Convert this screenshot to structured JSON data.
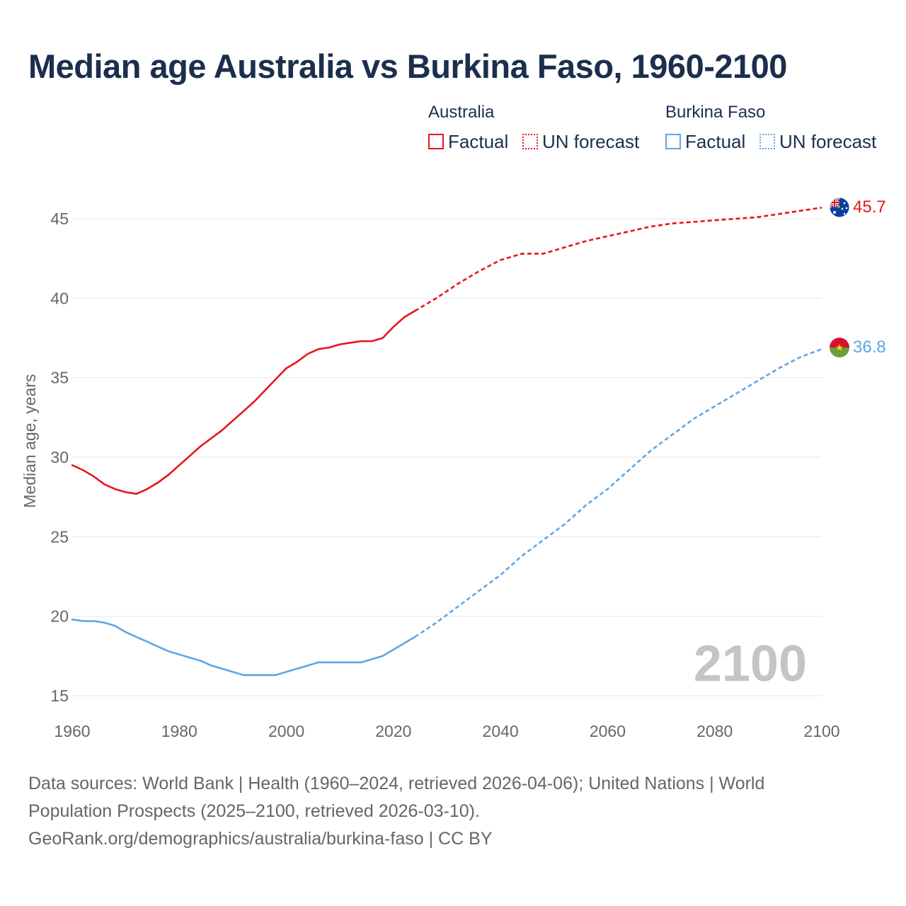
{
  "title": "Median age Australia vs Burkina Faso, 1960-2100",
  "legend": {
    "groups": [
      {
        "country": "Australia",
        "factual": "Factual",
        "forecast": "UN forecast",
        "color": "#e8141c"
      },
      {
        "country": "Burkina Faso",
        "factual": "Factual",
        "forecast": "UN forecast",
        "color": "#5ea6e6"
      }
    ]
  },
  "chart_data": {
    "type": "line",
    "title": "Median age Australia vs Burkina Faso, 1960-2100",
    "xlabel": "",
    "ylabel": "Median age, years",
    "xlim": [
      1960,
      2100
    ],
    "ylim": [
      15,
      47.5
    ],
    "x_ticks": [
      "1960",
      "1980",
      "2000",
      "2020",
      "2040",
      "2060",
      "2080",
      "2100"
    ],
    "y_ticks": [
      "15",
      "20",
      "25",
      "30",
      "35",
      "40",
      "45"
    ],
    "year_watermark": "2100",
    "series": [
      {
        "name": "Australia",
        "color": "#e8141c",
        "end_label": "45.7",
        "factual_years": [
          1960,
          1962,
          1964,
          1966,
          1968,
          1970,
          1972,
          1974,
          1976,
          1978,
          1980,
          1982,
          1984,
          1986,
          1988,
          1990,
          1992,
          1994,
          1996,
          1998,
          2000,
          2002,
          2004,
          2006,
          2008,
          2010,
          2012,
          2014,
          2016,
          2018,
          2020,
          2022,
          2024
        ],
        "factual_values": [
          29.5,
          29.2,
          28.8,
          28.3,
          28.0,
          27.8,
          27.7,
          28.0,
          28.4,
          28.9,
          29.5,
          30.1,
          30.7,
          31.2,
          31.7,
          32.3,
          32.9,
          33.5,
          34.2,
          34.9,
          35.6,
          36.0,
          36.5,
          36.8,
          36.9,
          37.1,
          37.2,
          37.3,
          37.3,
          37.5,
          38.2,
          38.8,
          39.2
        ],
        "forecast_years": [
          2024,
          2028,
          2032,
          2036,
          2040,
          2044,
          2048,
          2052,
          2056,
          2060,
          2064,
          2068,
          2072,
          2076,
          2080,
          2084,
          2088,
          2092,
          2096,
          2100
        ],
        "forecast_values": [
          39.2,
          40.0,
          40.9,
          41.7,
          42.4,
          42.8,
          42.8,
          43.2,
          43.6,
          43.9,
          44.2,
          44.5,
          44.7,
          44.8,
          44.9,
          45.0,
          45.1,
          45.3,
          45.5,
          45.7
        ]
      },
      {
        "name": "Burkina Faso",
        "color": "#5ea6e6",
        "end_label": "36.8",
        "factual_years": [
          1960,
          1962,
          1964,
          1966,
          1968,
          1970,
          1972,
          1974,
          1976,
          1978,
          1980,
          1982,
          1984,
          1986,
          1988,
          1990,
          1992,
          1994,
          1996,
          1998,
          2000,
          2002,
          2004,
          2006,
          2008,
          2010,
          2012,
          2014,
          2016,
          2018,
          2020,
          2022,
          2024
        ],
        "factual_values": [
          19.8,
          19.7,
          19.7,
          19.6,
          19.4,
          19.0,
          18.7,
          18.4,
          18.1,
          17.8,
          17.6,
          17.4,
          17.2,
          16.9,
          16.7,
          16.5,
          16.3,
          16.3,
          16.3,
          16.3,
          16.5,
          16.7,
          16.9,
          17.1,
          17.1,
          17.1,
          17.1,
          17.1,
          17.3,
          17.5,
          17.9,
          18.3,
          18.7
        ],
        "forecast_years": [
          2024,
          2028,
          2032,
          2036,
          2040,
          2044,
          2048,
          2052,
          2056,
          2060,
          2064,
          2068,
          2072,
          2076,
          2080,
          2084,
          2088,
          2092,
          2096,
          2100
        ],
        "forecast_values": [
          18.7,
          19.6,
          20.6,
          21.6,
          22.6,
          23.8,
          24.8,
          25.8,
          27.0,
          28.0,
          29.2,
          30.4,
          31.4,
          32.4,
          33.2,
          34.0,
          34.8,
          35.6,
          36.3,
          36.8
        ]
      }
    ]
  },
  "footer": {
    "line1": "Data sources: World Bank | Health (1960–2024, retrieved 2026-04-06); United Nations | World",
    "line2": "Population Prospects (2025–2100, retrieved 2026-03-10).",
    "line3": "GeoRank.org/demographics/australia/burkina-faso | CC BY"
  }
}
